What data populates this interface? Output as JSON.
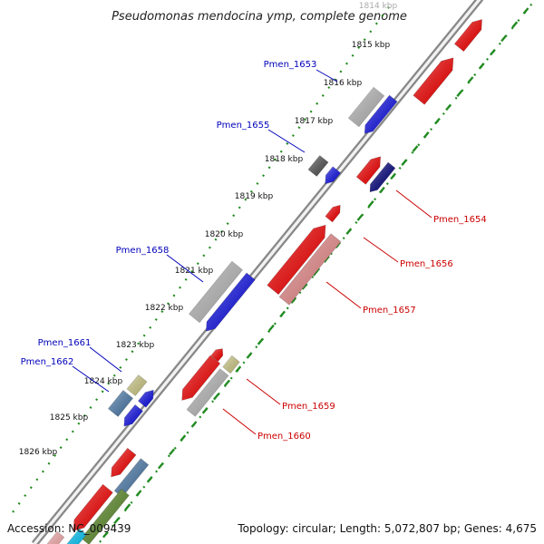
{
  "title": "Pseudomonas mendocina ymp, complete genome",
  "footer": {
    "accession": "Accession: NC_009439",
    "summary": "Topology: circular; Length: 5,072,807 bp; Genes: 4,675"
  },
  "colors": {
    "forward": "#ff0000",
    "reverse": "#1010ee",
    "gray": "#bdbdbd",
    "dark_gray": "#555555",
    "navy": "#000080",
    "pink": "#f08f8f",
    "steel": "#4f7fb0",
    "olive": "#d4d08a",
    "green": "#5e8f2a",
    "cyan": "#00ccff",
    "label_blue": "#0000bb",
    "label_red": "#cc0000",
    "dots": "#228b22"
  },
  "kbp_ticks": [
    "1814 kbp",
    "1815 kbp",
    "1816 kbp",
    "1817 kbp",
    "1818 kbp",
    "1819 kbp",
    "1820 kbp",
    "1821 kbp",
    "1822 kbp",
    "1823 kbp",
    "1824 kbp",
    "1825 kbp",
    "1826 kbp"
  ],
  "gene_labels": [
    {
      "text": "Pmen_1653",
      "color": "blue"
    },
    {
      "text": "Pmen_1655",
      "color": "blue"
    },
    {
      "text": "Pmen_1658",
      "color": "blue"
    },
    {
      "text": "Pmen_1661",
      "color": "blue"
    },
    {
      "text": "Pmen_1662",
      "color": "blue"
    },
    {
      "text": "Pmen_1654",
      "color": "red"
    },
    {
      "text": "Pmen_1656",
      "color": "red"
    },
    {
      "text": "Pmen_1657",
      "color": "red"
    },
    {
      "text": "Pmen_1659",
      "color": "red"
    },
    {
      "text": "Pmen_1660",
      "color": "red"
    }
  ]
}
